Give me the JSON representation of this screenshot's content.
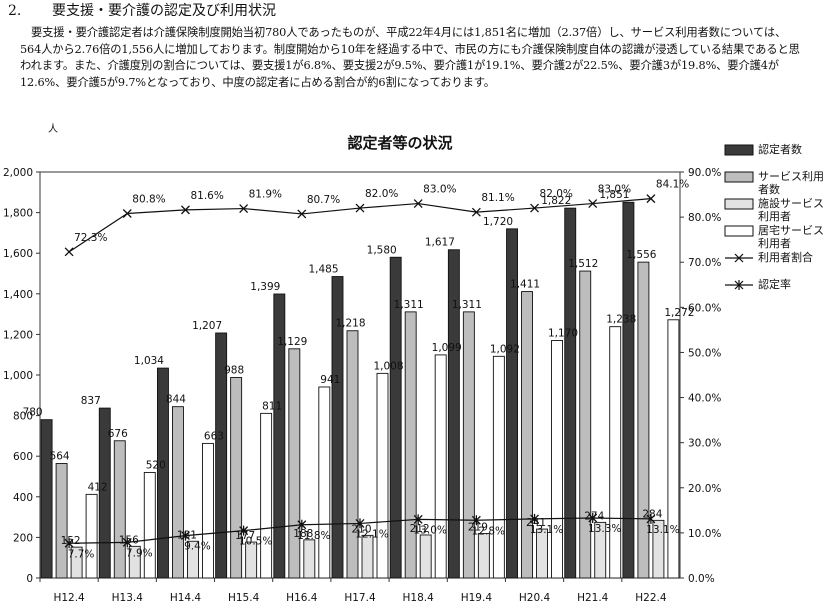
{
  "section": {
    "number": "2.",
    "title": "要支援・要介護の認定及び利用状況",
    "paragraph": "要支援・要介護認定者は介護保険制度開始当初780人であったものが、平成22年4月には1,851名に増加（2.37倍）し、サービス利用者数については、564人から2.76倍の1,556人に増加しております。制度開始から10年を経過する中で、市民の方にも介護保険制度自体の認識が浸透している結果であると思われます。また、介護度別の割合については、要支援1が6.8%、要支援2が9.5%、要介護1が19.1%、要介護2が22.5%、要介護3が19.8%、要介護4が12.6%、要介護5が9.7%となっており、中度の認定者に占める割合が約6割になっております。"
  },
  "chart_data": {
    "type": "bar",
    "title": "認定者等の状況",
    "y_left_unit": "人",
    "categories": [
      "H12.4",
      "H13.4",
      "H14.4",
      "H15.4",
      "H16.4",
      "H17.4",
      "H18.4",
      "H19.4",
      "H20.4",
      "H21.4",
      "H22.4"
    ],
    "ylim": [
      0,
      2000
    ],
    "y_ticks": [
      "0",
      "200",
      "400",
      "600",
      "800",
      "1,000",
      "1,200",
      "1,400",
      "1,600",
      "1,800",
      "2,000"
    ],
    "ylim_right": [
      0,
      90
    ],
    "y_right_ticks": [
      "0.0%",
      "10.0%",
      "20.0%",
      "30.0%",
      "40.0%",
      "50.0%",
      "60.0%",
      "70.0%",
      "80.0%",
      "90.0%"
    ],
    "grid": "off",
    "legend_position": "right",
    "bar_series": [
      {
        "name": "認定者数",
        "color": "#3a3a3a",
        "values": [
          780,
          837,
          1034,
          1207,
          1399,
          1485,
          1580,
          1617,
          1720,
          1822,
          1851
        ],
        "labels": [
          "780",
          "837",
          "1,034",
          "1,207",
          "1,399",
          "1,485",
          "1,580",
          "1,617",
          "1,720",
          "1,822",
          "1,851"
        ]
      },
      {
        "name": "サービス利用者数",
        "color": "#bdbdbd",
        "values": [
          564,
          676,
          844,
          988,
          1129,
          1218,
          1311,
          1311,
          1411,
          1512,
          1556
        ],
        "labels": [
          "564",
          "676",
          "844",
          "988",
          "1,129",
          "1,218",
          "1,311",
          "1,311",
          "1,411",
          "1,512",
          "1,556"
        ]
      },
      {
        "name": "施設サービス利用者",
        "color": "#e2e2e2",
        "values": [
          152,
          156,
          181,
          177,
          188,
          210,
          212,
          219,
          241,
          274,
          284
        ],
        "labels": [
          "152",
          "156",
          "181",
          "177",
          "188",
          "210",
          "212",
          "219",
          "241",
          "274",
          "284"
        ]
      },
      {
        "name": "居宅サービス利用者",
        "color": "#ffffff",
        "values": [
          412,
          520,
          663,
          811,
          941,
          1008,
          1099,
          1092,
          1170,
          1238,
          1272
        ],
        "labels": [
          "412",
          "520",
          "663",
          "811",
          "941",
          "1,008",
          "1,099",
          "1,092",
          "1,170",
          "1,238",
          "1,272"
        ]
      }
    ],
    "line_series": [
      {
        "name": "利用者割合",
        "marker": "x",
        "axis": "right",
        "values": [
          72.3,
          80.8,
          81.6,
          81.9,
          80.7,
          82.0,
          83.0,
          81.1,
          82.0,
          83.0,
          84.1
        ],
        "labels": [
          "72.3%",
          "80.8%",
          "81.6%",
          "81.9%",
          "80.7%",
          "82.0%",
          "83.0%",
          "81.1%",
          "82.0%",
          "83.0%",
          "84.1%"
        ]
      },
      {
        "name": "認定率",
        "marker": "star",
        "axis": "right",
        "values": [
          7.7,
          7.9,
          9.4,
          10.5,
          11.8,
          12.1,
          13.0,
          12.8,
          13.1,
          13.3,
          13.1
        ],
        "labels": [
          "7.7%",
          "7.9%",
          "9.4%",
          "10.5%",
          "11.8%",
          "12.1%",
          "13.0%",
          "12.8%",
          "13.1%",
          "13.3%",
          "13.1%"
        ]
      }
    ]
  },
  "legend": {
    "items": [
      {
        "label": "認定者数",
        "swatch": "bar",
        "fill": "#3a3a3a"
      },
      {
        "label": "サービス利用者数",
        "swatch": "bar",
        "fill": "#bdbdbd"
      },
      {
        "label": "施設サービス利用者",
        "swatch": "bar",
        "fill": "#e2e2e2"
      },
      {
        "label": "居宅サービス利用者",
        "swatch": "bar",
        "fill": "#ffffff"
      },
      {
        "label": "利用者割合",
        "swatch": "x-line"
      },
      {
        "label": "認定率",
        "swatch": "star-line"
      }
    ]
  }
}
